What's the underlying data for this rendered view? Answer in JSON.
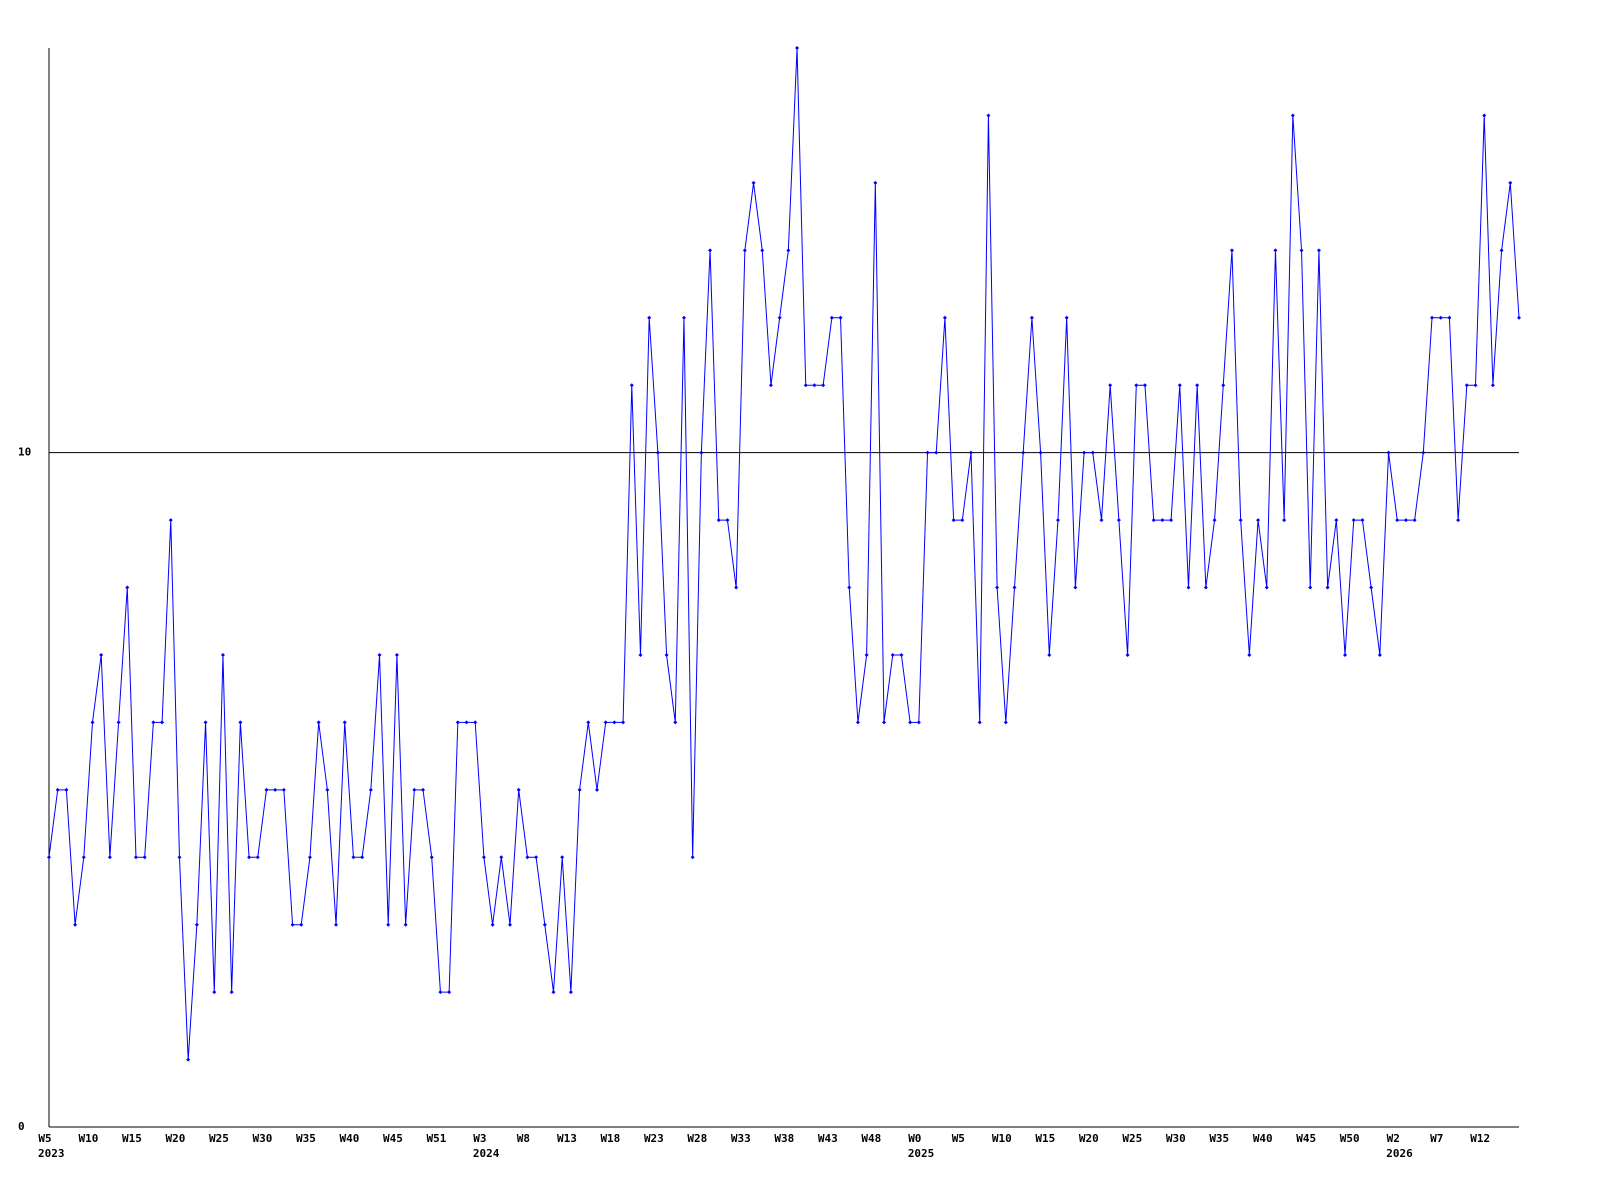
{
  "chart_data": {
    "type": "line",
    "categories": [
      "W5",
      null,
      null,
      null,
      null,
      "W10",
      null,
      null,
      null,
      null,
      "W15",
      null,
      null,
      null,
      null,
      "W20",
      null,
      null,
      null,
      null,
      "W25",
      null,
      null,
      null,
      null,
      "W30",
      null,
      null,
      null,
      null,
      "W35",
      null,
      null,
      null,
      null,
      "W40",
      null,
      null,
      null,
      null,
      "W45",
      null,
      null,
      null,
      null,
      "W51",
      null,
      null,
      null,
      null,
      "W3",
      null,
      null,
      null,
      null,
      "W8",
      null,
      null,
      null,
      null,
      "W13",
      null,
      null,
      null,
      null,
      "W18",
      null,
      null,
      null,
      null,
      "W23",
      null,
      null,
      null,
      null,
      "W28",
      null,
      null,
      null,
      null,
      "W33",
      null,
      null,
      null,
      null,
      "W38",
      null,
      null,
      null,
      null,
      "W43",
      null,
      null,
      null,
      null,
      "W48",
      null,
      null,
      null,
      null,
      "W0",
      null,
      null,
      null,
      null,
      "W5",
      null,
      null,
      null,
      null,
      "W10",
      null,
      null,
      null,
      null,
      "W15",
      null,
      null,
      null,
      null,
      "W20",
      null,
      null,
      null,
      null,
      "W25",
      null,
      null,
      null,
      null,
      "W30",
      null,
      null,
      null,
      null,
      "W35",
      null,
      null,
      null,
      null,
      "W40",
      null,
      null,
      null,
      null,
      "W45",
      null,
      null,
      null,
      null,
      "W50",
      null,
      null,
      null,
      null,
      "W2",
      null,
      null,
      null,
      null,
      "W7",
      null,
      null,
      null,
      null,
      "W12",
      null,
      null,
      null,
      null
    ],
    "years": [
      "2023",
      null,
      null,
      null,
      null,
      null,
      null,
      null,
      null,
      null,
      null,
      null,
      null,
      null,
      null,
      null,
      null,
      null,
      null,
      null,
      null,
      null,
      null,
      null,
      null,
      null,
      null,
      null,
      null,
      null,
      null,
      null,
      null,
      null,
      null,
      null,
      null,
      null,
      null,
      null,
      null,
      null,
      null,
      null,
      null,
      null,
      null,
      null,
      null,
      null,
      "2024",
      null,
      null,
      null,
      null,
      null,
      null,
      null,
      null,
      null,
      null,
      null,
      null,
      null,
      null,
      null,
      null,
      null,
      null,
      null,
      null,
      null,
      null,
      null,
      null,
      null,
      null,
      null,
      null,
      null,
      null,
      null,
      null,
      null,
      null,
      null,
      null,
      null,
      null,
      null,
      null,
      null,
      null,
      null,
      null,
      null,
      null,
      null,
      null,
      null,
      "2025",
      null,
      null,
      null,
      null,
      null,
      null,
      null,
      null,
      null,
      null,
      null,
      null,
      null,
      null,
      null,
      null,
      null,
      null,
      null,
      null,
      null,
      null,
      null,
      null,
      null,
      null,
      null,
      null,
      null,
      null,
      null,
      null,
      null,
      null,
      null,
      null,
      null,
      null,
      null,
      null,
      null,
      null,
      null,
      null,
      null,
      null,
      null,
      null,
      null,
      null,
      null,
      null,
      null,
      null,
      "2026",
      null,
      null,
      null,
      null,
      null,
      null,
      null,
      null,
      null,
      null,
      null,
      null,
      null,
      null
    ],
    "values": [
      4,
      5,
      5,
      3,
      4,
      6,
      7,
      4,
      6,
      8,
      4,
      4,
      6,
      6,
      9,
      4,
      1,
      3,
      6,
      2,
      7,
      2,
      6,
      4,
      4,
      5,
      5,
      5,
      3,
      3,
      4,
      6,
      5,
      3,
      6,
      4,
      4,
      5,
      7,
      3,
      7,
      3,
      5,
      5,
      4,
      2,
      2,
      6,
      6,
      6,
      4,
      3,
      4,
      3,
      5,
      4,
      4,
      3,
      2,
      4,
      2,
      5,
      6,
      5,
      6,
      6,
      6,
      11,
      7,
      12,
      10,
      7,
      6,
      12,
      4,
      10,
      13,
      9,
      9,
      8,
      13,
      14,
      13,
      11,
      12,
      13,
      16,
      11,
      11,
      11,
      12,
      12,
      8,
      6,
      7,
      14,
      6,
      7,
      7,
      6,
      6,
      10,
      10,
      12,
      9,
      9,
      10,
      6,
      15,
      8,
      6,
      8,
      10,
      12,
      10,
      7,
      9,
      12,
      8,
      10,
      10,
      9,
      11,
      9,
      7,
      11,
      11,
      9,
      9,
      9,
      11,
      8,
      11,
      8,
      9,
      11,
      13,
      9,
      7,
      9,
      8,
      13,
      9,
      15,
      13,
      8,
      13,
      8,
      9,
      7,
      9,
      9,
      8,
      7,
      10,
      9,
      9,
      9,
      10,
      12,
      12,
      12,
      9,
      11,
      11,
      15,
      11,
      13,
      14,
      12
    ],
    "color": "#0000ff",
    "ylim": [
      0,
      16
    ],
    "yticks": [
      0,
      10
    ],
    "grid": true
  }
}
